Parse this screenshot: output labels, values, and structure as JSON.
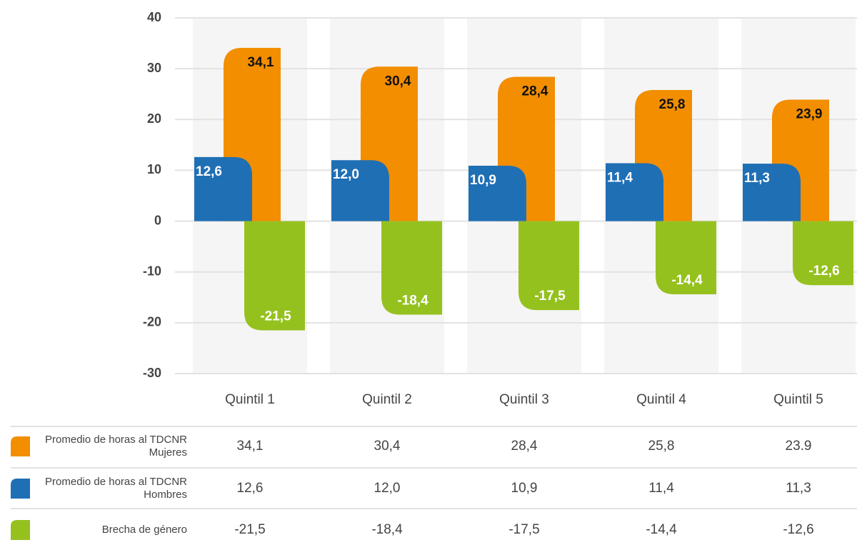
{
  "chart_data": {
    "type": "bar",
    "categories": [
      "Quintil 1",
      "Quintil 2",
      "Quintil 3",
      "Quintil 4",
      "Quintil 5"
    ],
    "series": [
      {
        "name": "Promedio de horas al TDCNR Mujeres",
        "color": "#f28e00",
        "values": [
          34.1,
          30.4,
          28.4,
          25.8,
          23.9
        ],
        "value_labels": [
          "34,1",
          "30,4",
          "28,4",
          "25,8",
          "23,9"
        ],
        "table_labels": [
          "34,1",
          "30,4",
          "28,4",
          "25,8",
          "23.9"
        ]
      },
      {
        "name": "Promedio de horas al TDCNR Hombres",
        "color": "#1f6fb5",
        "values": [
          12.6,
          12.0,
          10.9,
          11.4,
          11.3
        ],
        "value_labels": [
          "12,6",
          "12,0",
          "10,9",
          "11,4",
          "11,3"
        ],
        "table_labels": [
          "12,6",
          "12,0",
          "10,9",
          "11,4",
          "11,3"
        ]
      },
      {
        "name": "Brecha de género",
        "color": "#95c11f",
        "values": [
          -21.5,
          -18.4,
          -17.5,
          -14.4,
          -12.6
        ],
        "value_labels": [
          "-21,5",
          "-18,4",
          "-17,5",
          "-14,4",
          "-12,6"
        ],
        "table_labels": [
          "-21,5",
          "-18,4",
          "-17,5",
          "-14,4",
          "-12,6"
        ]
      }
    ],
    "ylim": [
      -30,
      40
    ],
    "yticks": [
      -30,
      -20,
      -10,
      0,
      10,
      20,
      30,
      40
    ],
    "grid": true
  }
}
